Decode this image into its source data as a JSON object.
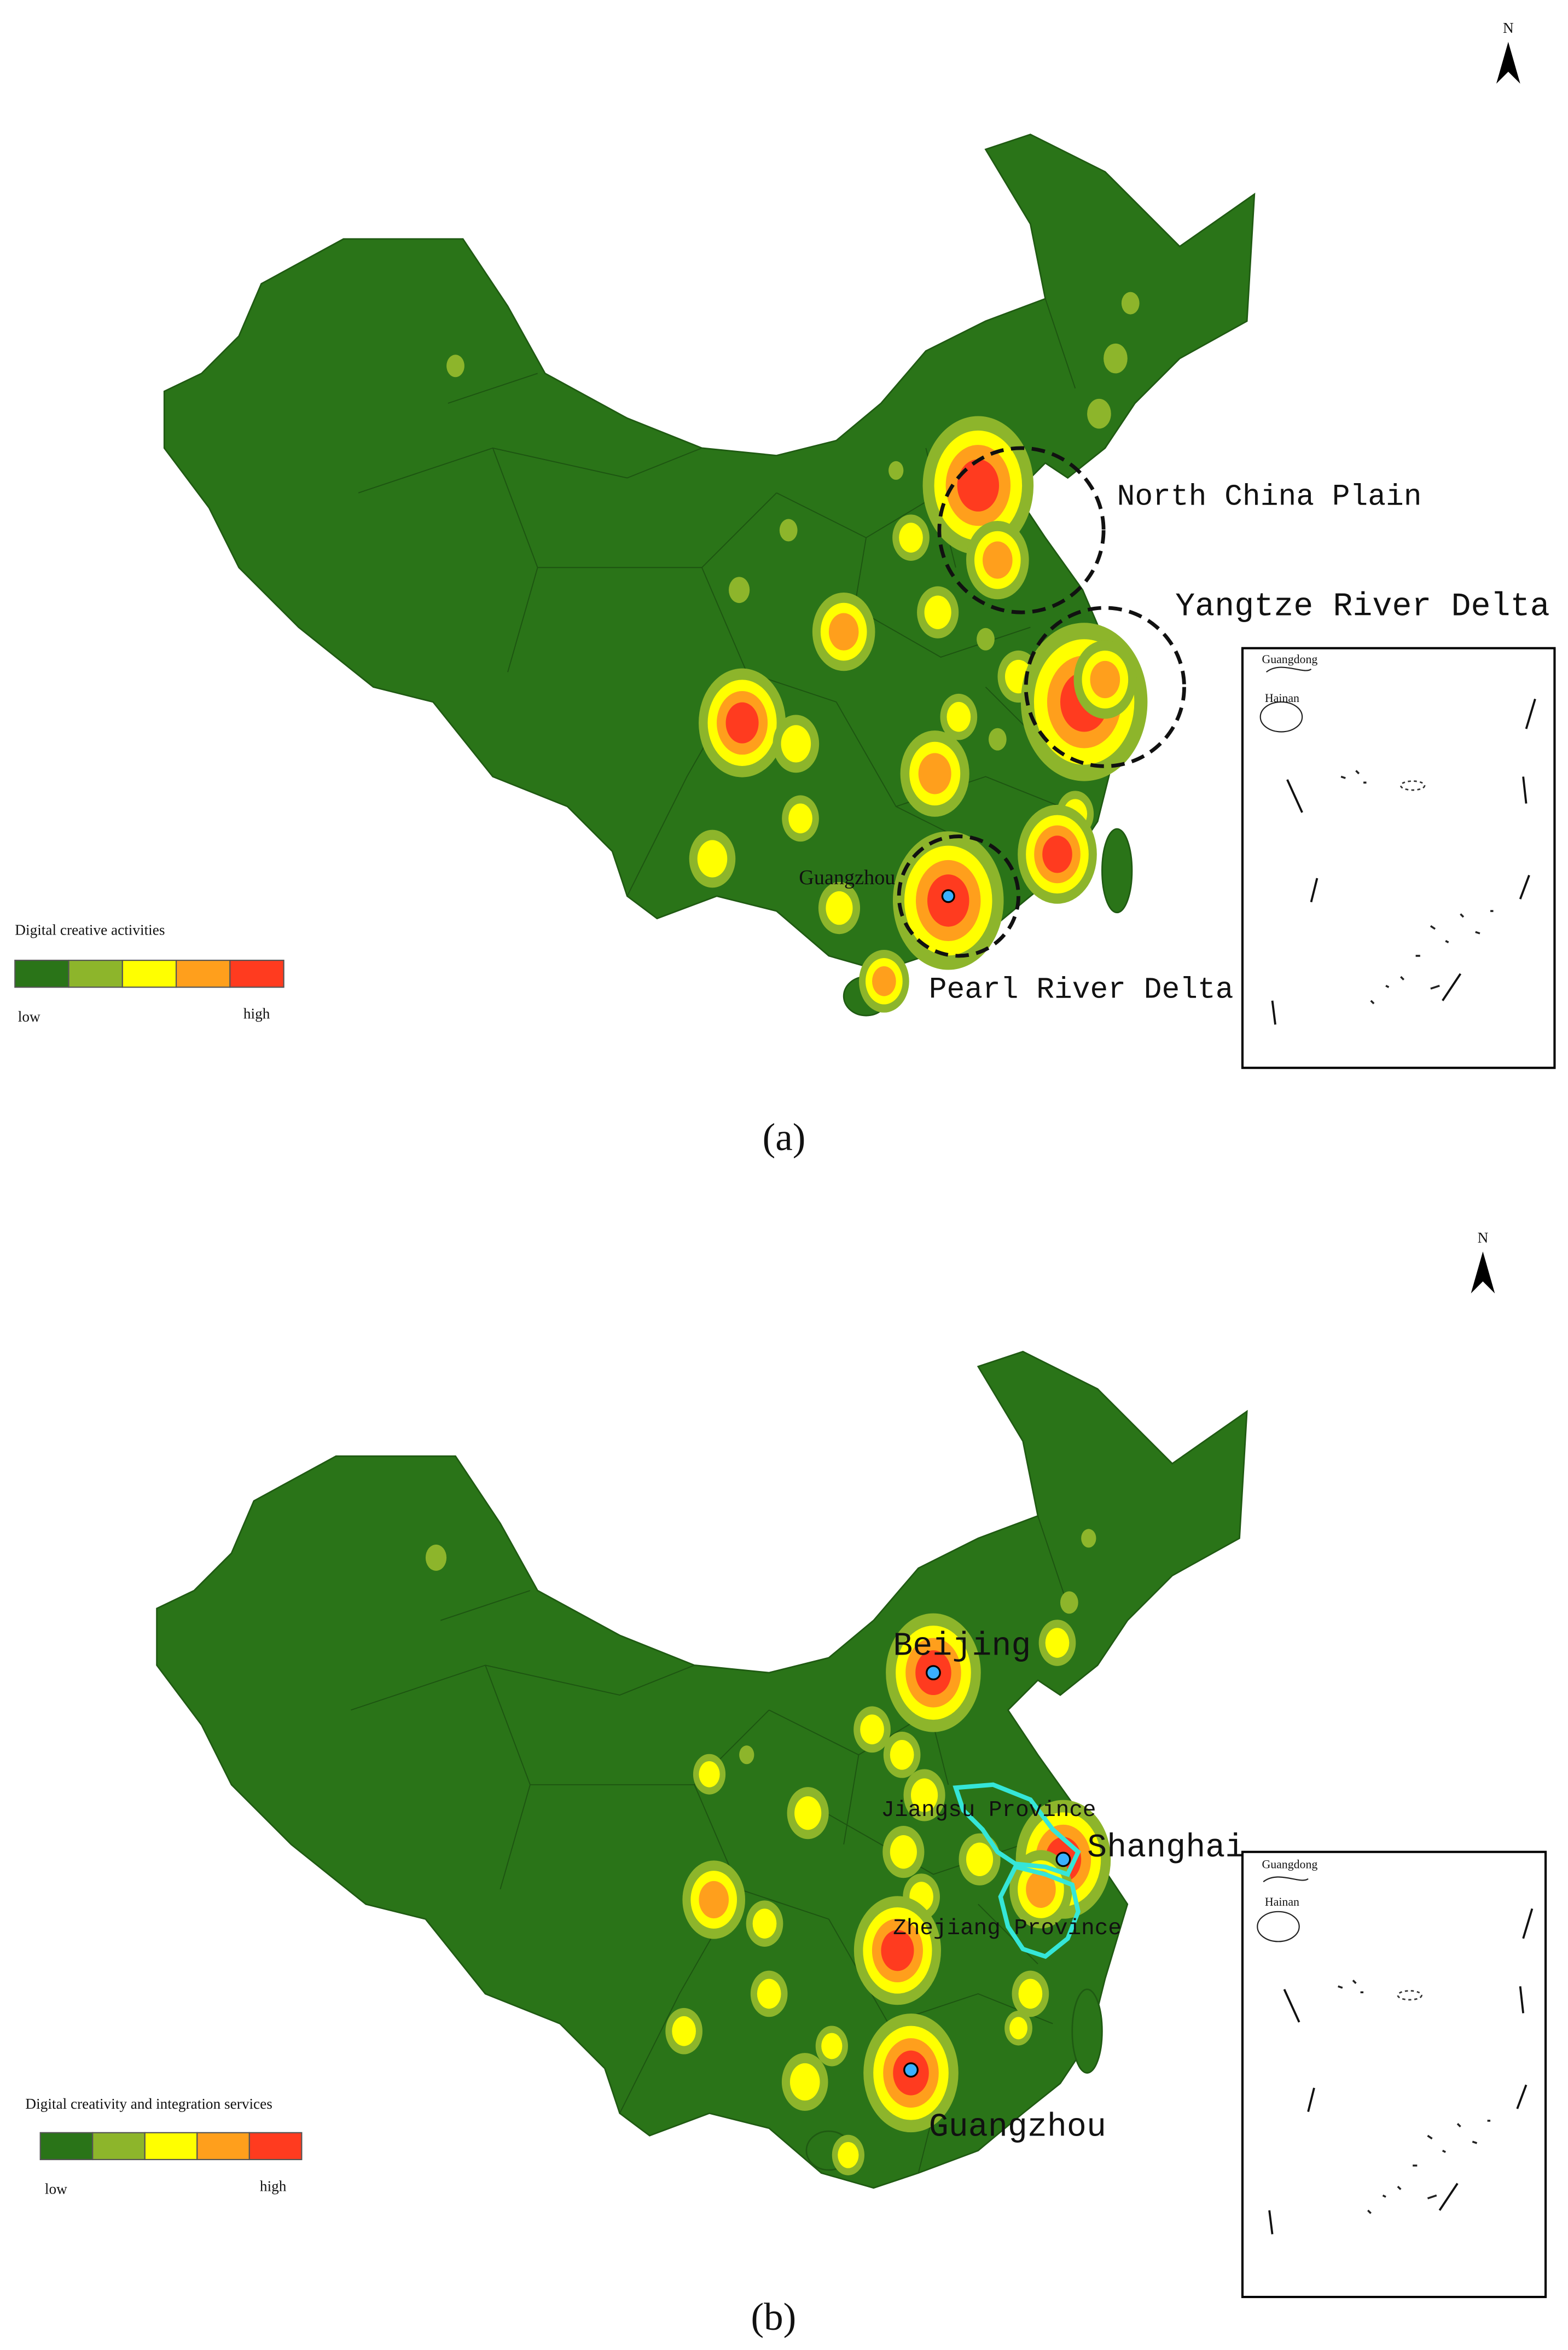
{
  "panels": [
    {
      "label": "(a)",
      "north": "N",
      "annotations": [
        "North China Plain",
        "Yangtze River Delta",
        "Pearl River Delta",
        "Guangzhou"
      ],
      "inset": [
        "Guangdong",
        "Hainan"
      ],
      "legend": {
        "title": "Digital creative activities",
        "low": "low",
        "high": "high",
        "colors": [
          "#2a7418",
          "#8db52b",
          "#ffff00",
          "#ff9f1c",
          "#ff3b1f"
        ]
      }
    },
    {
      "label": "(b)",
      "north": "N",
      "annotations": [
        "Beijing",
        "Jiangsu Province",
        "Shanghai",
        "Zhejiang Province",
        "Guangzhou"
      ],
      "inset": [
        "Guangdong",
        "Hainan"
      ],
      "legend": {
        "title": "Digital creativity and integration services",
        "low": "low",
        "high": "high",
        "colors": [
          "#2a7418",
          "#8db52b",
          "#ffff00",
          "#ff9f1c",
          "#ff3b1f"
        ]
      }
    }
  ]
}
